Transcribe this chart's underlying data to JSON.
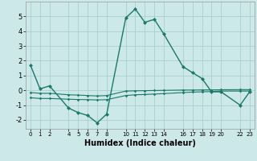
{
  "xlabel": "Humidex (Indice chaleur)",
  "bg_color": "#cce8e8",
  "grid_color": "#aacece",
  "line_color": "#1a7a6a",
  "x_main": [
    0,
    1,
    2,
    4,
    5,
    6,
    7,
    8,
    10,
    11,
    12,
    13,
    14,
    16,
    17,
    18,
    19,
    20,
    22,
    23
  ],
  "y_main": [
    1.7,
    0.1,
    0.3,
    -1.2,
    -1.5,
    -1.7,
    -2.2,
    -1.6,
    4.9,
    5.5,
    4.6,
    4.8,
    3.8,
    1.6,
    1.2,
    0.8,
    -0.1,
    -0.1,
    -1.0,
    -0.1
  ],
  "x_band1": [
    0,
    1,
    2,
    4,
    5,
    6,
    7,
    8,
    10,
    11,
    12,
    13,
    14,
    16,
    17,
    18,
    19,
    20,
    22,
    23
  ],
  "y_band1": [
    -0.5,
    -0.55,
    -0.55,
    -0.6,
    -0.62,
    -0.63,
    -0.65,
    -0.63,
    -0.35,
    -0.3,
    -0.28,
    -0.25,
    -0.22,
    -0.15,
    -0.12,
    -0.1,
    -0.08,
    -0.05,
    -0.05,
    -0.05
  ],
  "x_band2": [
    0,
    1,
    2,
    4,
    5,
    6,
    7,
    8,
    10,
    11,
    12,
    13,
    14,
    16,
    17,
    18,
    19,
    20,
    22,
    23
  ],
  "y_band2": [
    -0.15,
    -0.2,
    -0.2,
    -0.3,
    -0.32,
    -0.35,
    -0.38,
    -0.35,
    -0.05,
    -0.03,
    -0.02,
    -0.01,
    0.0,
    0.02,
    0.02,
    0.03,
    0.03,
    0.04,
    0.05,
    0.05
  ],
  "xlim": [
    -0.5,
    23.5
  ],
  "ylim": [
    -2.6,
    6.0
  ],
  "xticks": [
    0,
    1,
    2,
    4,
    5,
    6,
    7,
    8,
    10,
    11,
    12,
    13,
    14,
    16,
    17,
    18,
    19,
    20,
    22,
    23
  ],
  "yticks": [
    -2,
    -1,
    0,
    1,
    2,
    3,
    4,
    5
  ]
}
